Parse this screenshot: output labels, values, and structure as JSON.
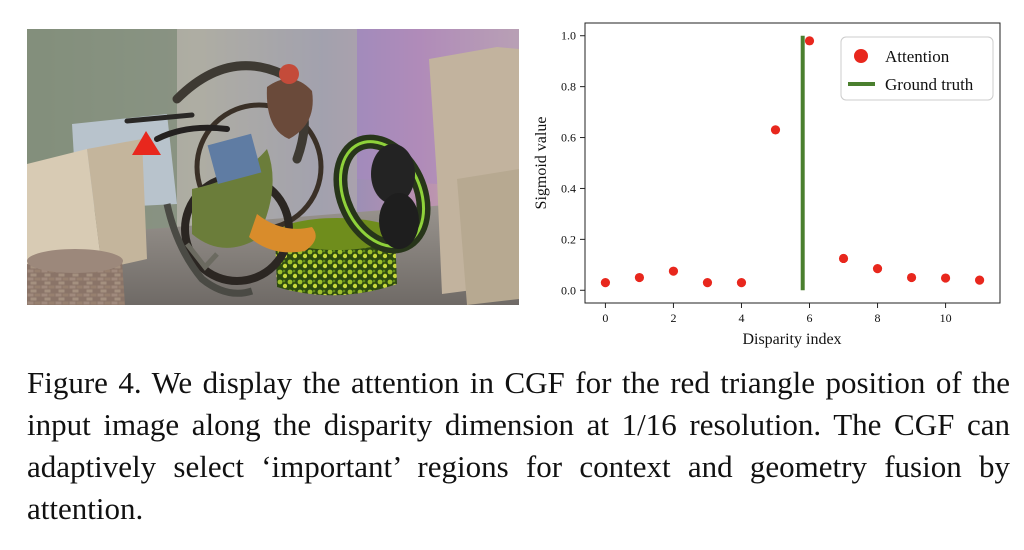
{
  "caption": "Figure 4. We display the attention in CGF for the red triangle position of the input image along the disparity dimension at 1/16 resolution. The CGF can adaptively select ‘important’ regions for context and geometry fusion by attention.",
  "scene": {
    "marker_color": "#e8271d"
  },
  "chart_data": {
    "type": "scatter",
    "xlabel": "Disparity index",
    "ylabel": "Sigmoid value",
    "xlim": [
      -0.6,
      11.6
    ],
    "ylim": [
      -0.05,
      1.05
    ],
    "xticks": [
      0,
      2,
      4,
      6,
      8,
      10
    ],
    "yticks": [
      0.0,
      0.2,
      0.4,
      0.6,
      0.8,
      1.0
    ],
    "series": [
      {
        "name": "Attention",
        "color": "#e8271d",
        "x": [
          0,
          1,
          2,
          3,
          4,
          5,
          6,
          7,
          8,
          9,
          10,
          11
        ],
        "y": [
          0.03,
          0.05,
          0.075,
          0.03,
          0.03,
          0.63,
          0.98,
          0.125,
          0.085,
          0.05,
          0.048,
          0.04
        ]
      },
      {
        "name": "Ground truth",
        "color": "#4a7f2e",
        "type": "vline",
        "x": 5.8,
        "y_range": [
          0.0,
          1.0
        ]
      }
    ],
    "grid": false,
    "legend_position": "top-right"
  }
}
